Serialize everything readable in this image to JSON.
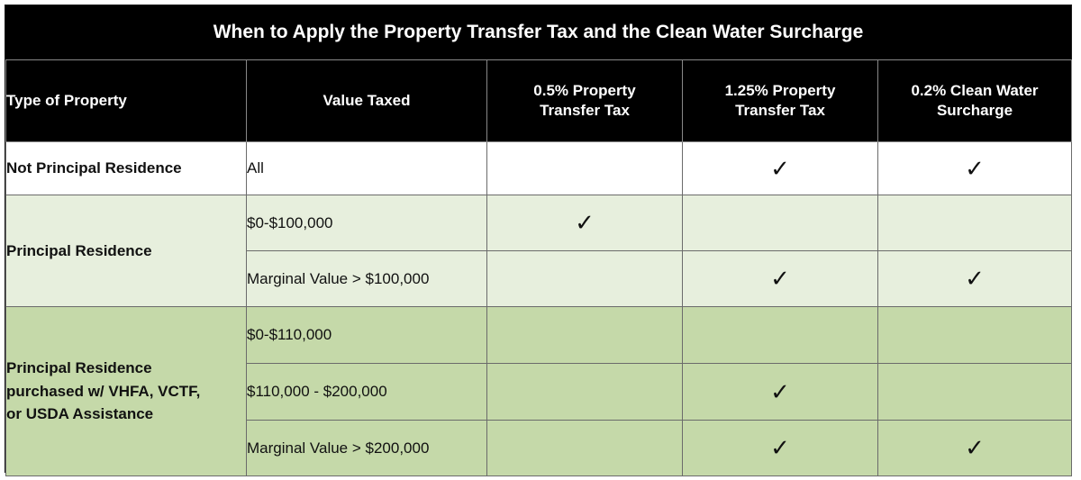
{
  "title": "When to Apply the Property Transfer Tax and the Clean Water Surcharge",
  "headers": {
    "type": "Type of Property",
    "value": "Value Taxed",
    "tax05": [
      "0.5% Property",
      "Transfer Tax"
    ],
    "tax125": [
      "1.25% Property",
      "Transfer Tax"
    ],
    "clean": [
      "0.2% Clean Water",
      "Surcharge"
    ]
  },
  "check_glyph": "✓",
  "groups": [
    {
      "type_lines": [
        "Not Principal Residence"
      ],
      "color": "#ffffff",
      "rows": [
        {
          "value": "All",
          "tax05": false,
          "tax125": true,
          "clean": true
        }
      ]
    },
    {
      "type_lines": [
        "Principal Residence"
      ],
      "color": "#e7efdd",
      "rows": [
        {
          "value": "$0-$100,000",
          "tax05": true,
          "tax125": false,
          "clean": false
        },
        {
          "value": "Marginal Value > $100,000",
          "tax05": false,
          "tax125": true,
          "clean": true
        }
      ]
    },
    {
      "type_lines": [
        "Principal Residence",
        "purchased w/ VHFA, VCTF,",
        "or USDA Assistance"
      ],
      "color": "#c5d9a9",
      "rows": [
        {
          "value": "$0-$110,000",
          "tax05": false,
          "tax125": false,
          "clean": false
        },
        {
          "value": "$110,000 - $200,000",
          "tax05": false,
          "tax125": true,
          "clean": false
        },
        {
          "value": "Marginal Value > $200,000",
          "tax05": false,
          "tax125": true,
          "clean": true
        }
      ]
    }
  ]
}
